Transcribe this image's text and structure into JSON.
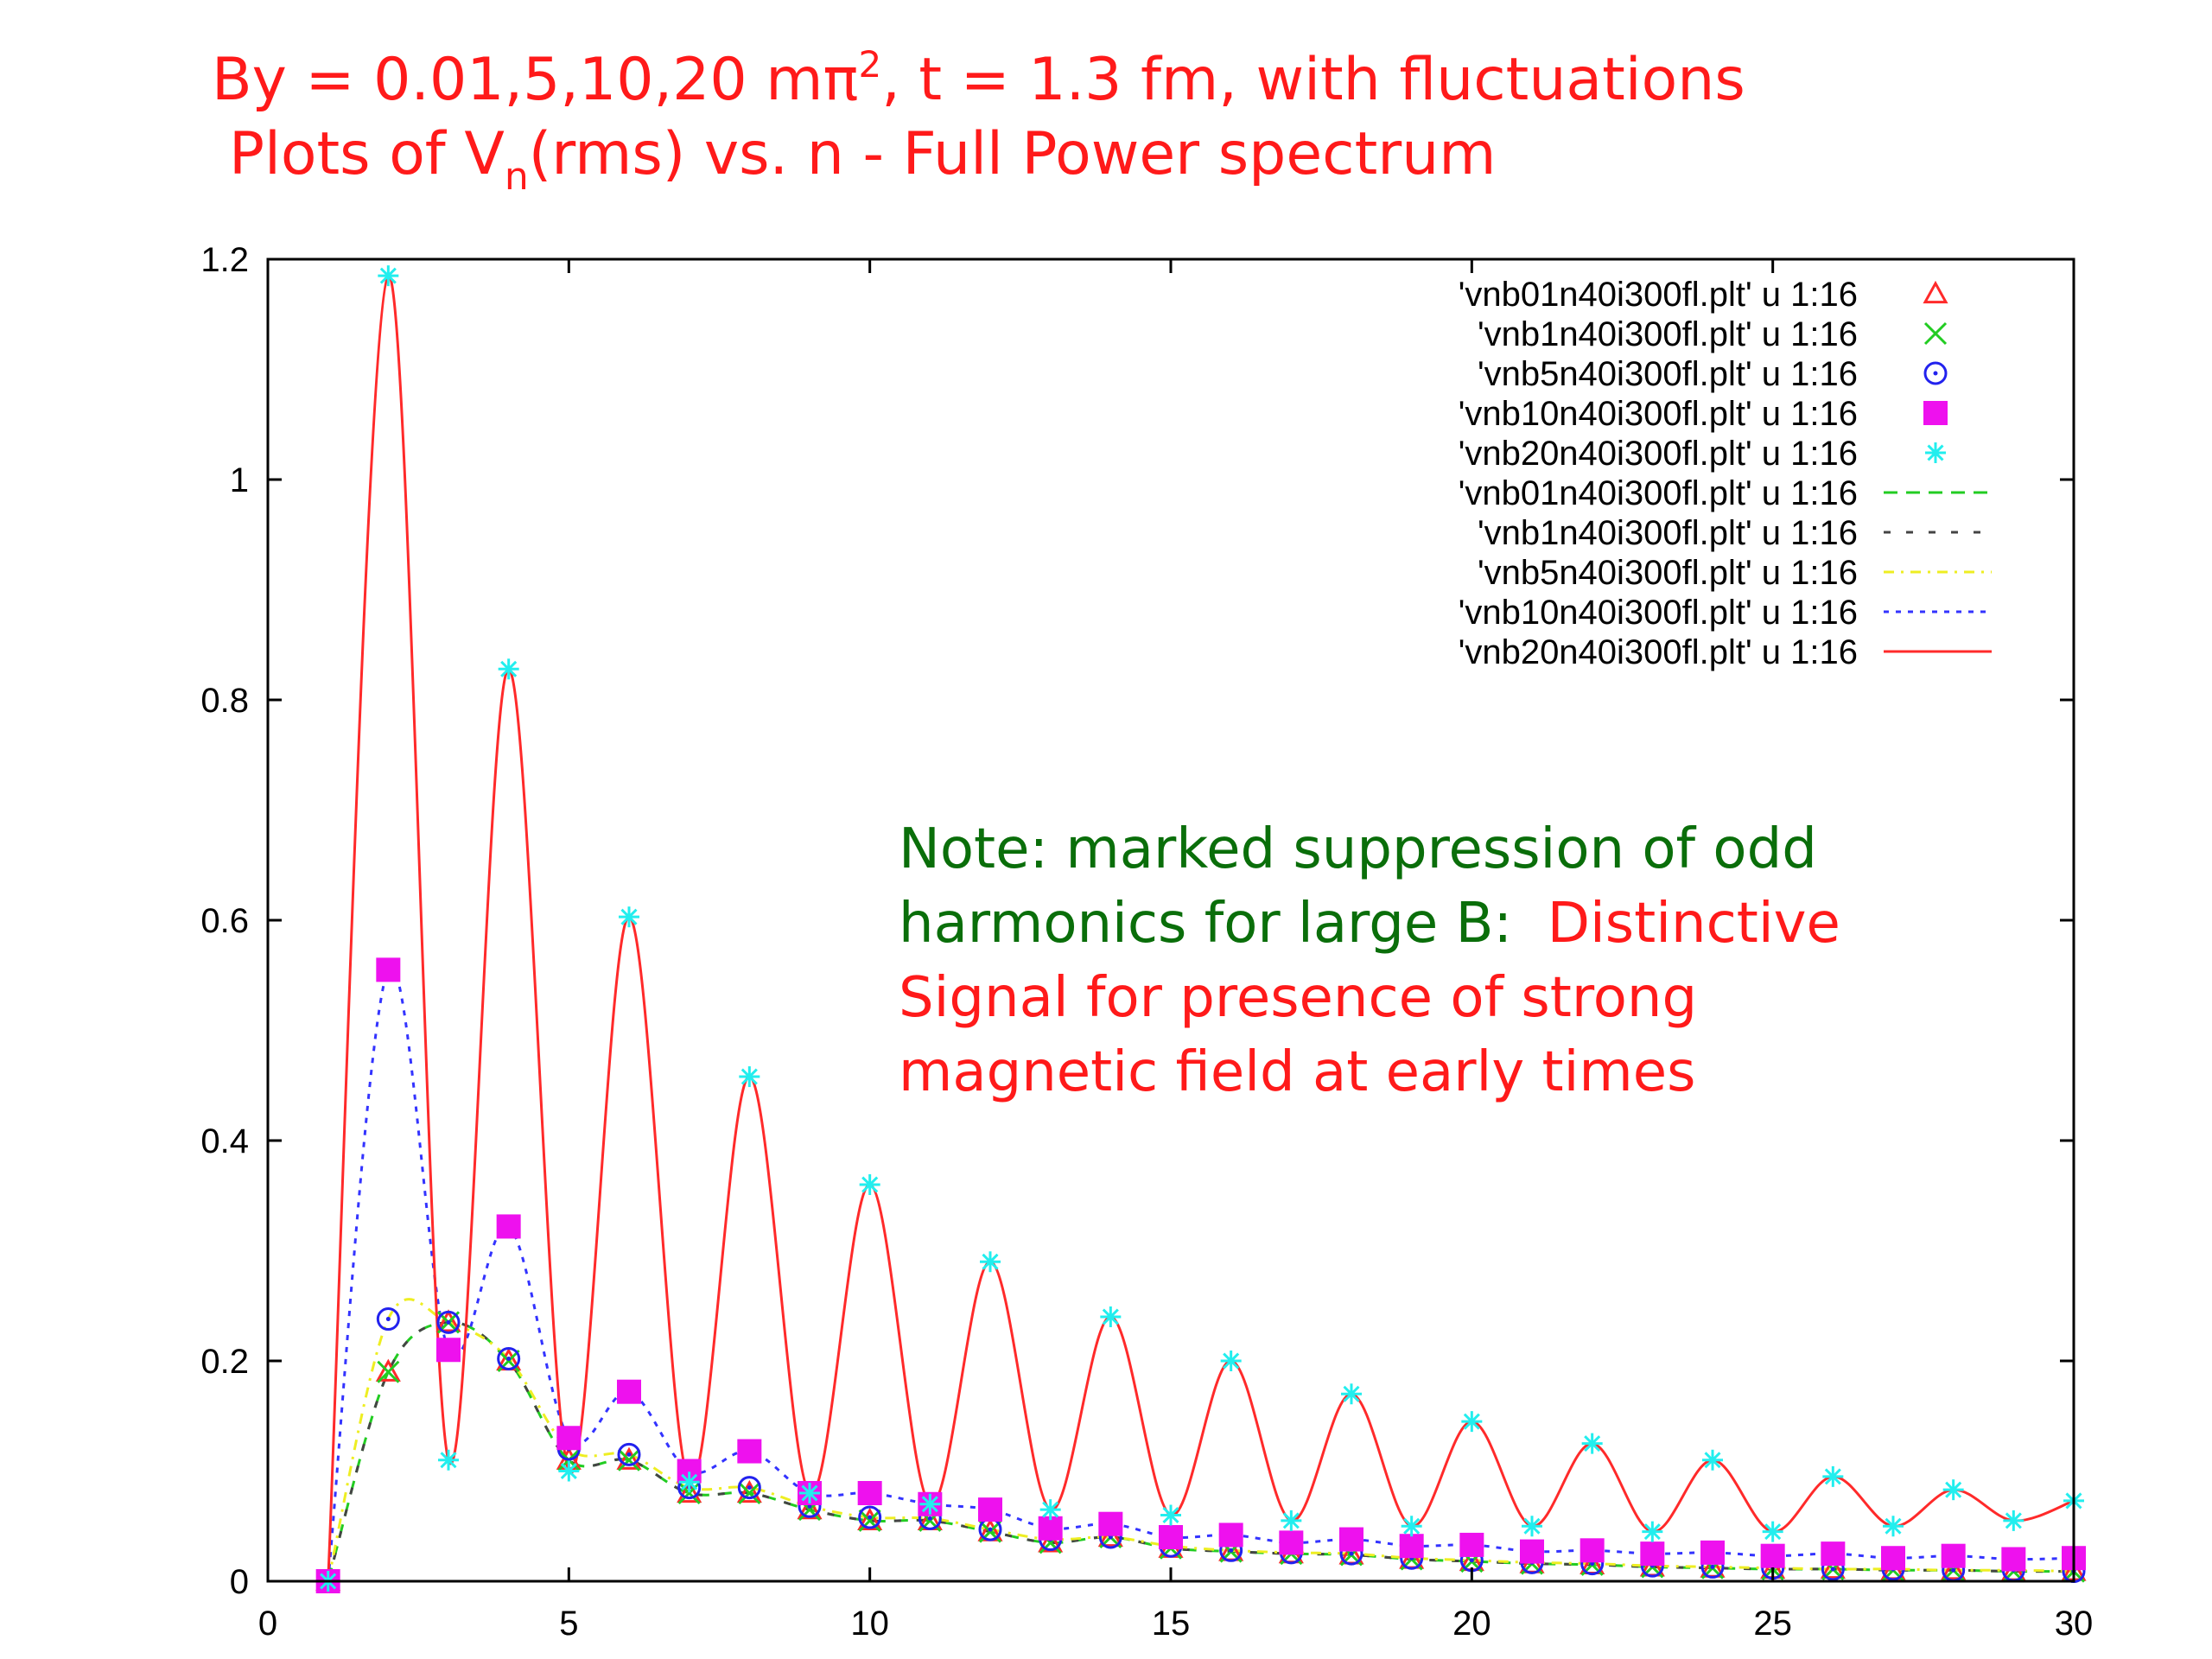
{
  "title": {
    "l1_pre": "By = 0.01,5,10,20 mπ",
    "l1_sup": "2",
    "l1_post": ",  t = 1.3 fm,  with fluctuations",
    "l2_pre": "Plots of V",
    "l2_sub": "n",
    "l2_post": "(rms)   vs.  n -  Full Power spectrum"
  },
  "note": {
    "green1": "Note: marked suppression of odd",
    "green2": "harmonics for large B:",
    "red2": "Distinctive",
    "red3": "Signal for presence of strong",
    "red4": "magnetic field at early times"
  },
  "colors": {
    "b01_points": "#ff2a2a",
    "b1_points": "#22cc22",
    "b5_points": "#2222ee",
    "b10_points": "#ee11ee",
    "b20_points": "#22eeee",
    "b01_line": "#22cc22",
    "b1_line": "#444444",
    "b5_line": "#eeee22",
    "b10_line": "#3333ff",
    "b20_line": "#ff2a2a"
  },
  "chart_data": {
    "type": "scatter",
    "xlim": [
      0,
      30
    ],
    "ylim": [
      0,
      1.2
    ],
    "x_ticks": [
      "0",
      "5",
      "10",
      "15",
      "20",
      "25",
      "30"
    ],
    "y_ticks": [
      "0",
      "0.2",
      "0.4",
      "0.6",
      "0.8",
      "1",
      "1.2"
    ],
    "grid": false,
    "legend_position": "top-right",
    "x": [
      1,
      2,
      3,
      4,
      5,
      6,
      7,
      8,
      9,
      10,
      11,
      12,
      13,
      14,
      15,
      16,
      17,
      18,
      19,
      20,
      21,
      22,
      23,
      24,
      25,
      26,
      27,
      28,
      29,
      30
    ],
    "series": [
      {
        "name": "'vnb01n40i300fl.plt' u 1:16",
        "marker": "triangle",
        "color_key": "b01_points",
        "values": [
          0,
          0.19,
          0.235,
          0.2,
          0.11,
          0.11,
          0.08,
          0.08,
          0.065,
          0.055,
          0.055,
          0.045,
          0.035,
          0.04,
          0.03,
          0.027,
          0.025,
          0.024,
          0.02,
          0.018,
          0.016,
          0.015,
          0.013,
          0.012,
          0.011,
          0.011,
          0.01,
          0.01,
          0.009,
          0.009
        ]
      },
      {
        "name": "'vnb1n40i300fl.plt' u 1:16",
        "marker": "cross",
        "color_key": "b1_points",
        "values": [
          0,
          0.19,
          0.235,
          0.2,
          0.11,
          0.11,
          0.08,
          0.08,
          0.065,
          0.055,
          0.055,
          0.045,
          0.035,
          0.04,
          0.03,
          0.027,
          0.025,
          0.024,
          0.02,
          0.018,
          0.016,
          0.015,
          0.013,
          0.012,
          0.011,
          0.011,
          0.01,
          0.01,
          0.009,
          0.009
        ]
      },
      {
        "name": "'vnb5n40i300fl.plt' u 1:16",
        "marker": "circle",
        "color_key": "b5_points",
        "values": [
          0,
          0.238,
          0.235,
          0.202,
          0.12,
          0.115,
          0.085,
          0.085,
          0.068,
          0.058,
          0.057,
          0.047,
          0.038,
          0.04,
          0.032,
          0.028,
          0.026,
          0.025,
          0.021,
          0.019,
          0.017,
          0.016,
          0.014,
          0.013,
          0.012,
          0.011,
          0.011,
          0.01,
          0.01,
          0.009
        ]
      },
      {
        "name": "'vnb10n40i300fl.plt' u 1:16",
        "marker": "square",
        "color_key": "b10_points",
        "values": [
          0,
          0.555,
          0.21,
          0.322,
          0.13,
          0.172,
          0.1,
          0.118,
          0.08,
          0.08,
          0.07,
          0.065,
          0.048,
          0.052,
          0.04,
          0.042,
          0.035,
          0.038,
          0.032,
          0.033,
          0.027,
          0.028,
          0.025,
          0.026,
          0.023,
          0.025,
          0.021,
          0.023,
          0.02,
          0.021
        ]
      },
      {
        "name": "'vnb20n40i300fl.plt' u 1:16",
        "marker": "star",
        "color_key": "b20_points",
        "values": [
          0,
          1.185,
          0.11,
          0.828,
          0.1,
          0.603,
          0.09,
          0.458,
          0.08,
          0.36,
          0.07,
          0.29,
          0.065,
          0.24,
          0.06,
          0.2,
          0.055,
          0.17,
          0.05,
          0.145,
          0.05,
          0.125,
          0.045,
          0.11,
          0.045,
          0.095,
          0.05,
          0.083,
          0.055,
          0.073
        ]
      },
      {
        "name": "'vnb01n40i300fl.plt' u 1:16",
        "line": "dash",
        "color_key": "b01_line",
        "values": [
          0,
          0.19,
          0.235,
          0.2,
          0.11,
          0.11,
          0.08,
          0.08,
          0.065,
          0.055,
          0.055,
          0.045,
          0.035,
          0.04,
          0.03,
          0.027,
          0.025,
          0.024,
          0.02,
          0.018,
          0.016,
          0.015,
          0.013,
          0.012,
          0.011,
          0.011,
          0.01,
          0.01,
          0.009,
          0.009
        ]
      },
      {
        "name": "'vnb1n40i300fl.plt' u 1:16",
        "line": "dash-long",
        "color_key": "b1_line",
        "values": [
          0,
          0.19,
          0.235,
          0.2,
          0.11,
          0.11,
          0.08,
          0.08,
          0.065,
          0.055,
          0.055,
          0.045,
          0.035,
          0.04,
          0.03,
          0.027,
          0.025,
          0.024,
          0.02,
          0.018,
          0.016,
          0.015,
          0.013,
          0.012,
          0.011,
          0.011,
          0.01,
          0.01,
          0.009,
          0.009
        ]
      },
      {
        "name": "'vnb5n40i300fl.plt' u 1:16",
        "line": "dash-dot",
        "color_key": "b5_line",
        "values": [
          0,
          0.238,
          0.235,
          0.202,
          0.12,
          0.115,
          0.085,
          0.085,
          0.068,
          0.058,
          0.057,
          0.047,
          0.038,
          0.04,
          0.032,
          0.028,
          0.026,
          0.025,
          0.021,
          0.019,
          0.017,
          0.016,
          0.014,
          0.013,
          0.012,
          0.011,
          0.011,
          0.01,
          0.01,
          0.009
        ]
      },
      {
        "name": "'vnb10n40i300fl.plt' u 1:16",
        "line": "dot",
        "color_key": "b10_line",
        "values": [
          0,
          0.555,
          0.21,
          0.322,
          0.13,
          0.172,
          0.1,
          0.118,
          0.08,
          0.08,
          0.07,
          0.065,
          0.048,
          0.052,
          0.04,
          0.042,
          0.035,
          0.038,
          0.032,
          0.033,
          0.027,
          0.028,
          0.025,
          0.026,
          0.023,
          0.025,
          0.021,
          0.023,
          0.02,
          0.021
        ]
      },
      {
        "name": "'vnb20n40i300fl.plt' u 1:16",
        "line": "solid",
        "color_key": "b20_line",
        "values": [
          0,
          1.185,
          0.11,
          0.828,
          0.1,
          0.603,
          0.09,
          0.458,
          0.08,
          0.36,
          0.07,
          0.29,
          0.065,
          0.24,
          0.06,
          0.2,
          0.055,
          0.17,
          0.05,
          0.145,
          0.05,
          0.125,
          0.045,
          0.11,
          0.045,
          0.095,
          0.05,
          0.083,
          0.055,
          0.073
        ]
      }
    ]
  }
}
